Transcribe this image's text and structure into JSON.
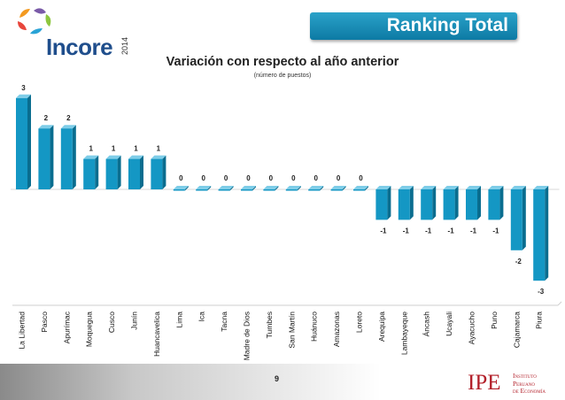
{
  "header": {
    "logo_text": "Incore",
    "logo_year": "2014",
    "banner_label": "Ranking Total"
  },
  "colors": {
    "bar": "#1497c4",
    "bar_top": "#7fcde8",
    "bar_side": "#0a6d8f",
    "banner": "#1a8fbf",
    "brand_red": "#b3202a"
  },
  "chart_data": {
    "type": "bar",
    "title": "Variación con respecto al año anterior",
    "subtitle": "(número de puestos)",
    "xlabel": "",
    "ylabel": "",
    "ylim": [
      -3,
      3
    ],
    "grid": false,
    "legend": "none",
    "categories": [
      "La Libertad",
      "Pasco",
      "Apurímac",
      "Moquegua",
      "Cusco",
      "Junín",
      "Huancavelica",
      "Lima",
      "Ica",
      "Tacna",
      "Madre de Dios",
      "Tumbes",
      "San Martín",
      "Huánuco",
      "Amazonas",
      "Loreto",
      "Arequipa",
      "Lambayeque",
      "Áncash",
      "Ucayali",
      "Ayacucho",
      "Puno",
      "Cajamarca",
      "Piura"
    ],
    "values": [
      3,
      2,
      2,
      1,
      1,
      1,
      1,
      0,
      0,
      0,
      0,
      0,
      0,
      0,
      0,
      0,
      -1,
      -1,
      -1,
      -1,
      -1,
      -1,
      -2,
      -3
    ],
    "data_labels": [
      "3",
      "2",
      "2",
      "1",
      "1",
      "1",
      "1",
      "0",
      "0",
      "0",
      "0",
      "0",
      "0",
      "0",
      "0",
      "0",
      "-1",
      "-1",
      "-1",
      "-1",
      "-1",
      "-1",
      "-2",
      "-3"
    ]
  },
  "footer": {
    "page_number": "9",
    "org_logo_main": "IPE",
    "org_logo_line1": "Instituto",
    "org_logo_line2": "Peruano",
    "org_logo_line3": "de Economía"
  }
}
